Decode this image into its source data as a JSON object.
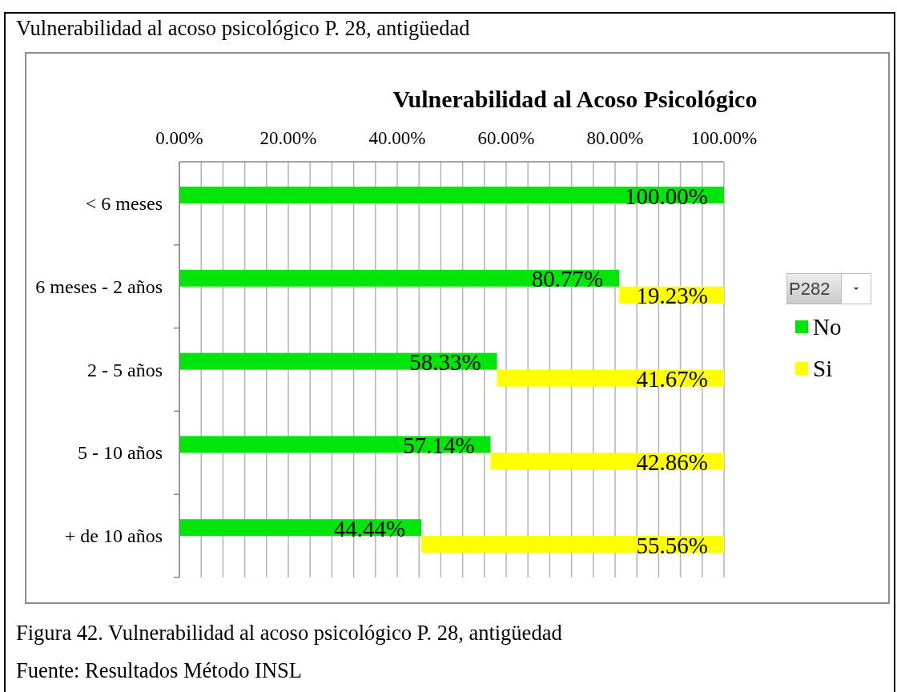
{
  "chart_data": {
    "type": "bar",
    "orientation": "horizontal",
    "stacked": true,
    "subtitle": "Vulnerabilidad al acoso psicológico P. 28, antigüedad",
    "title": "Vulnerabilidad al Acoso Psicológico",
    "legend_title": "P282",
    "categories": [
      "< 6 meses",
      "6 meses - 2 años",
      "2 - 5 años",
      "5 - 10 años",
      "+ de 10 años"
    ],
    "series": [
      {
        "name": "No",
        "color": "#00e60a",
        "values": [
          100,
          80.77,
          58.33,
          57.14,
          44.44
        ],
        "value_labels": [
          "100.00%",
          "80.77%",
          "58.33%",
          "57.14%",
          "44.44%"
        ]
      },
      {
        "name": "Si",
        "color": "#ffff00",
        "values": [
          null,
          19.23,
          41.67,
          42.86,
          55.56
        ],
        "value_labels": [
          null,
          "19.23%",
          "41.67%",
          "42.86%",
          "55.56%"
        ]
      }
    ],
    "xlim": [
      0,
      100
    ],
    "xticks": [
      {
        "value": 0,
        "label": "0.00%"
      },
      {
        "value": 4,
        "label": null
      },
      {
        "value": 8,
        "label": null
      },
      {
        "value": 12,
        "label": null
      },
      {
        "value": 16,
        "label": null
      },
      {
        "value": 20,
        "label": "20.00%"
      },
      {
        "value": 24,
        "label": null
      },
      {
        "value": 28,
        "label": null
      },
      {
        "value": 32,
        "label": null
      },
      {
        "value": 36,
        "label": null
      },
      {
        "value": 40,
        "label": "40.00%"
      },
      {
        "value": 44,
        "label": null
      },
      {
        "value": 48,
        "label": null
      },
      {
        "value": 52,
        "label": null
      },
      {
        "value": 56,
        "label": null
      },
      {
        "value": 60,
        "label": "60.00%"
      },
      {
        "value": 64,
        "label": null
      },
      {
        "value": 68,
        "label": null
      },
      {
        "value": 72,
        "label": null
      },
      {
        "value": 76,
        "label": null
      },
      {
        "value": 80,
        "label": "80.00%"
      },
      {
        "value": 84,
        "label": null
      },
      {
        "value": 88,
        "label": null
      },
      {
        "value": 92,
        "label": null
      },
      {
        "value": 96,
        "label": null
      },
      {
        "value": 100,
        "label": "100.00%"
      }
    ],
    "grid": "x",
    "legend": "right",
    "annotations": [
      "Figura 42. Vulnerabilidad al acoso psicológico P. 28, antigüedad",
      "Fuente: Resultados Método INSL"
    ]
  }
}
